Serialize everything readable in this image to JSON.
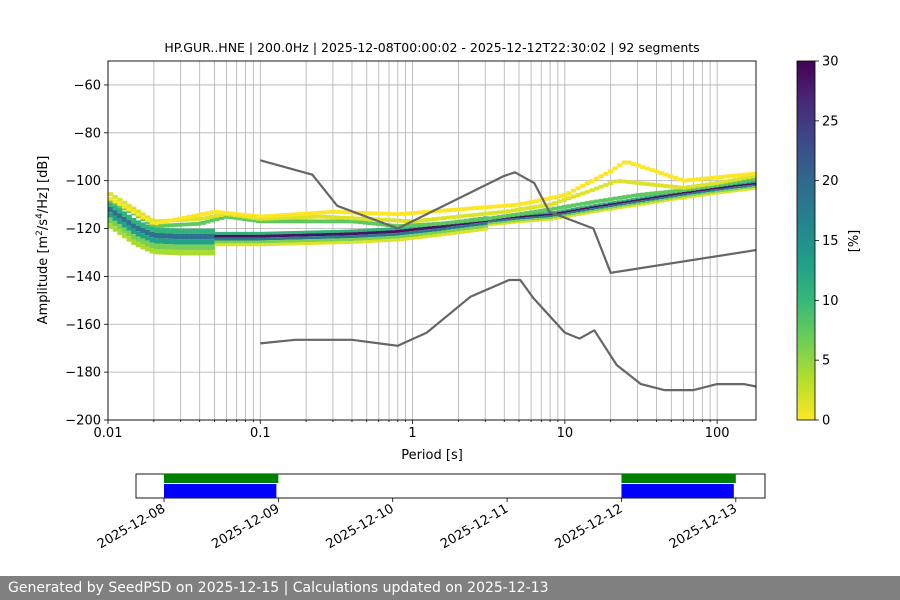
{
  "chart_data": [
    {
      "type": "heatmap",
      "title": "HP.GUR..HNE | 200.0Hz | 2025-12-08T00:00:02 - 2025-12-12T22:30:02 | 92 segments",
      "xlabel": "Period [s]",
      "ylabel_parts": [
        "Amplitude [m",
        "2",
        "/s",
        "4",
        "/Hz] [dB]"
      ],
      "x_scale": "log",
      "xlim": [
        0.01,
        180
      ],
      "ylim": [
        -200,
        -50
      ],
      "x_ticks": [
        {
          "v": 0.01,
          "label": "0.01"
        },
        {
          "v": 0.1,
          "label": "0.1"
        },
        {
          "v": 1,
          "label": "1"
        },
        {
          "v": 10,
          "label": "10"
        },
        {
          "v": 100,
          "label": "100"
        }
      ],
      "y_ticks": [
        {
          "v": -60,
          "label": "−60"
        },
        {
          "v": -80,
          "label": "−80"
        },
        {
          "v": -100,
          "label": "−100"
        },
        {
          "v": -120,
          "label": "−120"
        },
        {
          "v": -140,
          "label": "−140"
        },
        {
          "v": -160,
          "label": "−160"
        },
        {
          "v": -180,
          "label": "−180"
        },
        {
          "v": -200,
          "label": "−200"
        }
      ],
      "grid": true,
      "colorbar": {
        "label": "[%]",
        "range": [
          0,
          30
        ],
        "ticks": [
          {
            "v": 0,
            "label": "0"
          },
          {
            "v": 5,
            "label": "5"
          },
          {
            "v": 10,
            "label": "10"
          },
          {
            "v": 15,
            "label": "15"
          },
          {
            "v": 20,
            "label": "20"
          },
          {
            "v": 25,
            "label": "25"
          },
          {
            "v": 30,
            "label": "30"
          }
        ],
        "colors": [
          "#fde725",
          "#b5de2b",
          "#6ece58",
          "#35b779",
          "#1f9e89",
          "#26828e",
          "#31688e",
          "#3e4989",
          "#482878",
          "#440154"
        ]
      },
      "mode_curve": [
        [
          0.01,
          -111
        ],
        [
          0.015,
          -119
        ],
        [
          0.02,
          -122.5
        ],
        [
          0.03,
          -123
        ],
        [
          0.05,
          -123
        ],
        [
          0.1,
          -123
        ],
        [
          0.2,
          -122.5
        ],
        [
          0.4,
          -122
        ],
        [
          0.8,
          -121
        ],
        [
          1.5,
          -119
        ],
        [
          3,
          -116.5
        ],
        [
          5,
          -115
        ],
        [
          8,
          -114
        ],
        [
          15,
          -111
        ],
        [
          30,
          -108
        ],
        [
          60,
          -105
        ],
        [
          100,
          -103
        ],
        [
          180,
          -101
        ]
      ],
      "spread_curves": [
        {
          "values": [
            [
              0.01,
              -108
            ],
            [
              0.015,
              -114
            ],
            [
              0.02,
              -119
            ],
            [
              0.04,
              -118
            ],
            [
              0.06,
              -115
            ],
            [
              0.1,
              -117
            ],
            [
              0.2,
              -117
            ],
            [
              0.4,
              -117
            ],
            [
              0.8,
              -119
            ],
            [
              1.5,
              -118
            ],
            [
              3,
              -116
            ],
            [
              5,
              -114
            ],
            [
              8,
              -112
            ],
            [
              15,
              -109
            ],
            [
              30,
              -106
            ],
            [
              60,
              -104
            ],
            [
              100,
              -102
            ],
            [
              180,
              -99
            ]
          ],
          "weight": 0.25
        },
        {
          "values": [
            [
              0.01,
              -105
            ],
            [
              0.015,
              -112
            ],
            [
              0.02,
              -117
            ],
            [
              0.04,
              -116
            ],
            [
              0.06,
              -114
            ],
            [
              0.1,
              -116
            ],
            [
              0.25,
              -115
            ],
            [
              0.5,
              -116
            ],
            [
              1,
              -117
            ],
            [
              2,
              -115
            ],
            [
              4,
              -113
            ],
            [
              8,
              -110
            ],
            [
              15,
              -104
            ],
            [
              22,
              -100
            ],
            [
              30,
              -101
            ],
            [
              60,
              -103
            ],
            [
              100,
              -101
            ],
            [
              180,
              -98
            ]
          ],
          "weight": 0.05
        },
        {
          "values": [
            [
              0.01,
              -107
            ],
            [
              0.02,
              -118
            ],
            [
              0.05,
              -113
            ],
            [
              0.1,
              -115
            ],
            [
              0.3,
              -113
            ],
            [
              0.8,
              -114
            ],
            [
              2,
              -112
            ],
            [
              5,
              -110
            ],
            [
              10,
              -106
            ],
            [
              20,
              -96
            ],
            [
              25,
              -92
            ],
            [
              35,
              -95
            ],
            [
              60,
              -100
            ],
            [
              180,
              -97
            ]
          ],
          "weight": 0.0
        }
      ],
      "model_curves": [
        {
          "name": "",
          "points": [
            [
              0.1,
              -91.5
            ],
            [
              0.22,
              -97.5
            ],
            [
              0.32,
              -110.5
            ],
            [
              0.8,
              -120
            ],
            [
              4,
              -98
            ],
            [
              4.7,
              -96.5
            ],
            [
              6.3,
              -101
            ],
            [
              7.9,
              -113
            ],
            [
              15.4,
              -120
            ],
            [
              20,
              -138.5
            ],
            [
              180,
              -129
            ]
          ]
        },
        {
          "name": "",
          "points": [
            [
              0.1,
              -168
            ],
            [
              0.17,
              -166.5
            ],
            [
              0.4,
              -166.5
            ],
            [
              0.8,
              -169
            ],
            [
              1.24,
              -163.5
            ],
            [
              2.4,
              -148.5
            ],
            [
              4.3,
              -141.5
            ],
            [
              5.1,
              -141.5
            ],
            [
              6.2,
              -149
            ],
            [
              10,
              -163.5
            ],
            [
              12.5,
              -166
            ],
            [
              15.6,
              -162.5
            ],
            [
              21.9,
              -177
            ],
            [
              31.6,
              -185
            ],
            [
              45,
              -187.5
            ],
            [
              70,
              -187.5
            ],
            [
              100,
              -185
            ],
            [
              150,
              -185
            ],
            [
              180,
              -186
            ]
          ]
        }
      ]
    },
    {
      "type": "bar",
      "x_dates": [
        "2025-12-08",
        "2025-12-09",
        "2025-12-10",
        "2025-12-11",
        "2025-12-12",
        "2025-12-13"
      ],
      "segments_top": [
        {
          "start": "2025-12-08",
          "end": "2025-12-09",
          "color": "#008000"
        },
        {
          "start": "2025-12-12",
          "end": "2025-12-13",
          "color": "#008000"
        }
      ],
      "segments_bottom": [
        {
          "start": "2025-12-08",
          "end": "2025-12-09",
          "color": "#0000ff"
        },
        {
          "start": "2025-12-12",
          "end": "2025-12-13",
          "color": "#0000ff"
        }
      ]
    }
  ],
  "footer": {
    "text": "Generated by SeedPSD on 2025-12-15 | Calculations updated on 2025-12-13"
  }
}
